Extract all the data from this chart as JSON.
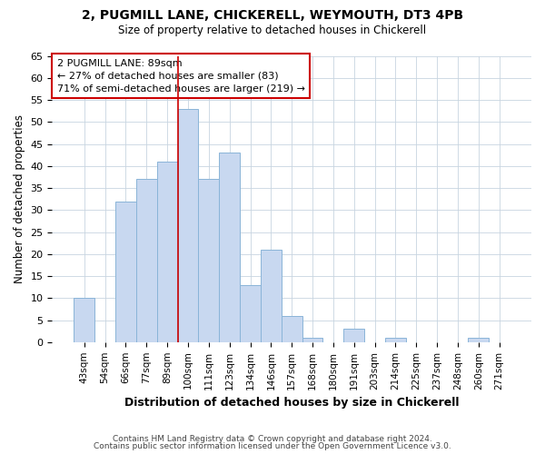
{
  "title": "2, PUGMILL LANE, CHICKERELL, WEYMOUTH, DT3 4PB",
  "subtitle": "Size of property relative to detached houses in Chickerell",
  "xlabel": "Distribution of detached houses by size in Chickerell",
  "ylabel": "Number of detached properties",
  "bar_labels": [
    "43sqm",
    "54sqm",
    "66sqm",
    "77sqm",
    "89sqm",
    "100sqm",
    "111sqm",
    "123sqm",
    "134sqm",
    "146sqm",
    "157sqm",
    "168sqm",
    "180sqm",
    "191sqm",
    "203sqm",
    "214sqm",
    "225sqm",
    "237sqm",
    "248sqm",
    "260sqm",
    "271sqm"
  ],
  "bar_values": [
    10,
    0,
    32,
    37,
    41,
    53,
    37,
    43,
    13,
    21,
    6,
    1,
    0,
    3,
    0,
    1,
    0,
    0,
    0,
    1,
    0
  ],
  "bar_color": "#c8d8f0",
  "bar_edge_color": "#8ab4d8",
  "ylim": [
    0,
    65
  ],
  "yticks": [
    0,
    5,
    10,
    15,
    20,
    25,
    30,
    35,
    40,
    45,
    50,
    55,
    60,
    65
  ],
  "property_line_index": 4,
  "property_label": "2 PUGMILL LANE: 89sqm",
  "annotation_line1": "← 27% of detached houses are smaller (83)",
  "annotation_line2": "71% of semi-detached houses are larger (219) →",
  "annotation_box_color": "#ffffff",
  "annotation_border_color": "#cc0000",
  "property_line_color": "#cc0000",
  "footer1": "Contains HM Land Registry data © Crown copyright and database right 2024.",
  "footer2": "Contains public sector information licensed under the Open Government Licence v3.0.",
  "background_color": "#ffffff",
  "grid_color": "#c8d4e0"
}
